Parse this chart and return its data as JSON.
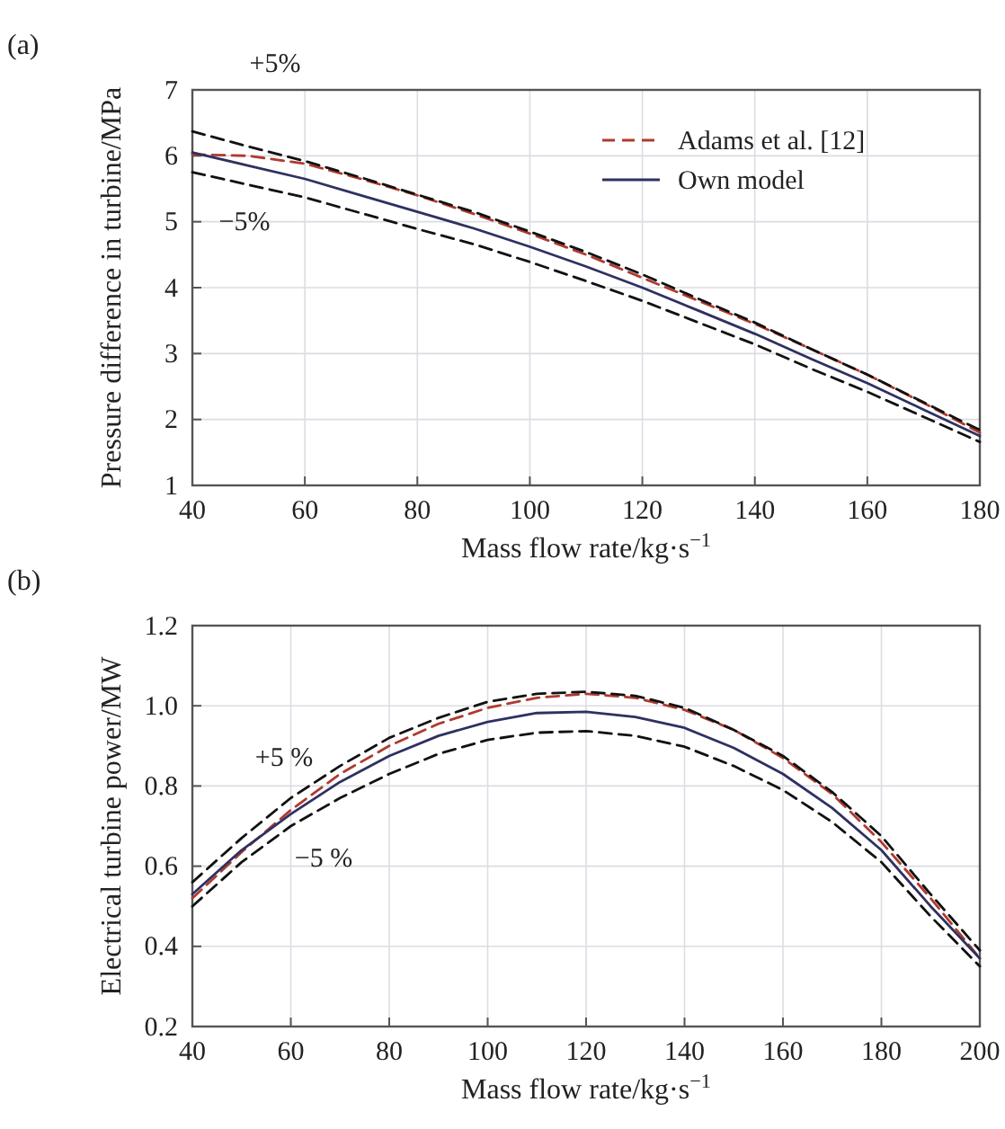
{
  "chart_data": [
    {
      "type": "line",
      "xlabel": "Mass flow rate/kg·s$^{−1}$",
      "ylabel": "Pressure difference in turbine/MPa",
      "x": [
        40,
        50,
        60,
        70,
        80,
        90,
        100,
        110,
        120,
        130,
        140,
        150,
        160,
        170,
        180
      ],
      "xlim": [
        40,
        180
      ],
      "xticks": [
        40,
        60,
        80,
        100,
        120,
        140,
        160,
        180
      ],
      "ylim": [
        1,
        7
      ],
      "yticks": [
        1,
        2,
        3,
        4,
        5,
        6,
        7
      ],
      "grid": true,
      "legend": "top right",
      "annotations": [
        "(a)",
        "+5%",
        "−5%"
      ],
      "series": [
        {
          "name": "Adams et al. [12]",
          "color": "#b03a2e",
          "line_style": "dashed",
          "values": [
            6.02,
            6.0,
            5.88,
            5.65,
            5.4,
            5.12,
            4.82,
            4.5,
            4.15,
            3.8,
            3.45,
            3.07,
            2.68,
            2.25,
            1.8
          ]
        },
        {
          "name": "Own model",
          "color": "#2e3160",
          "line_style": "solid",
          "values": [
            6.05,
            5.85,
            5.65,
            5.4,
            5.15,
            4.9,
            4.62,
            4.32,
            4.0,
            3.65,
            3.3,
            2.92,
            2.55,
            2.15,
            1.75
          ]
        },
        {
          "color": "#111111",
          "line_style": "dashed",
          "values": [
            6.37,
            6.14,
            5.92,
            5.67,
            5.41,
            5.15,
            4.85,
            4.54,
            4.2,
            3.83,
            3.47,
            3.07,
            2.68,
            2.26,
            1.84
          ]
        },
        {
          "color": "#111111",
          "line_style": "dashed",
          "values": [
            5.75,
            5.56,
            5.37,
            5.13,
            4.89,
            4.66,
            4.39,
            4.1,
            3.8,
            3.47,
            3.14,
            2.77,
            2.42,
            2.04,
            1.66
          ]
        }
      ]
    },
    {
      "type": "line",
      "xlabel": "Mass flow rate/kg·s$^{−1}$",
      "ylabel": "Electrical turbine power/MW",
      "x": [
        40,
        50,
        60,
        70,
        80,
        90,
        100,
        110,
        120,
        130,
        140,
        150,
        160,
        170,
        180,
        190,
        200
      ],
      "xlim": [
        40,
        200
      ],
      "xticks": [
        40,
        60,
        80,
        100,
        120,
        140,
        160,
        180,
        200
      ],
      "ylim": [
        0.2,
        1.2
      ],
      "yticks": [
        {
          "value": 0.2,
          "label": "0.2"
        },
        {
          "value": 0.4,
          "label": "0.4"
        },
        {
          "value": 0.6,
          "label": "0.6"
        },
        {
          "value": 0.8,
          "label": "0.8"
        },
        {
          "value": 1.0,
          "label": "1.0"
        },
        {
          "value": 1.2,
          "label": "1.2"
        }
      ],
      "grid": true,
      "annotations": [
        "(b)",
        "+5 %",
        "−5 %"
      ],
      "series": [
        {
          "color": "#b03a2e",
          "line_style": "dashed",
          "values": [
            0.52,
            0.635,
            0.74,
            0.83,
            0.9,
            0.955,
            0.995,
            1.02,
            1.03,
            1.02,
            0.99,
            0.94,
            0.87,
            0.78,
            0.66,
            0.52,
            0.37
          ]
        },
        {
          "color": "#2e3160",
          "line_style": "solid",
          "values": [
            0.53,
            0.64,
            0.73,
            0.81,
            0.875,
            0.925,
            0.96,
            0.982,
            0.985,
            0.972,
            0.945,
            0.895,
            0.83,
            0.745,
            0.64,
            0.5,
            0.37
          ]
        },
        {
          "color": "#111111",
          "line_style": "dashed",
          "values": [
            0.56,
            0.67,
            0.77,
            0.85,
            0.92,
            0.97,
            1.01,
            1.03,
            1.035,
            1.025,
            0.995,
            0.94,
            0.875,
            0.785,
            0.675,
            0.53,
            0.39
          ]
        },
        {
          "color": "#111111",
          "line_style": "dashed",
          "values": [
            0.5,
            0.61,
            0.7,
            0.77,
            0.83,
            0.88,
            0.915,
            0.933,
            0.937,
            0.925,
            0.898,
            0.85,
            0.79,
            0.71,
            0.61,
            0.475,
            0.35
          ]
        }
      ]
    }
  ]
}
